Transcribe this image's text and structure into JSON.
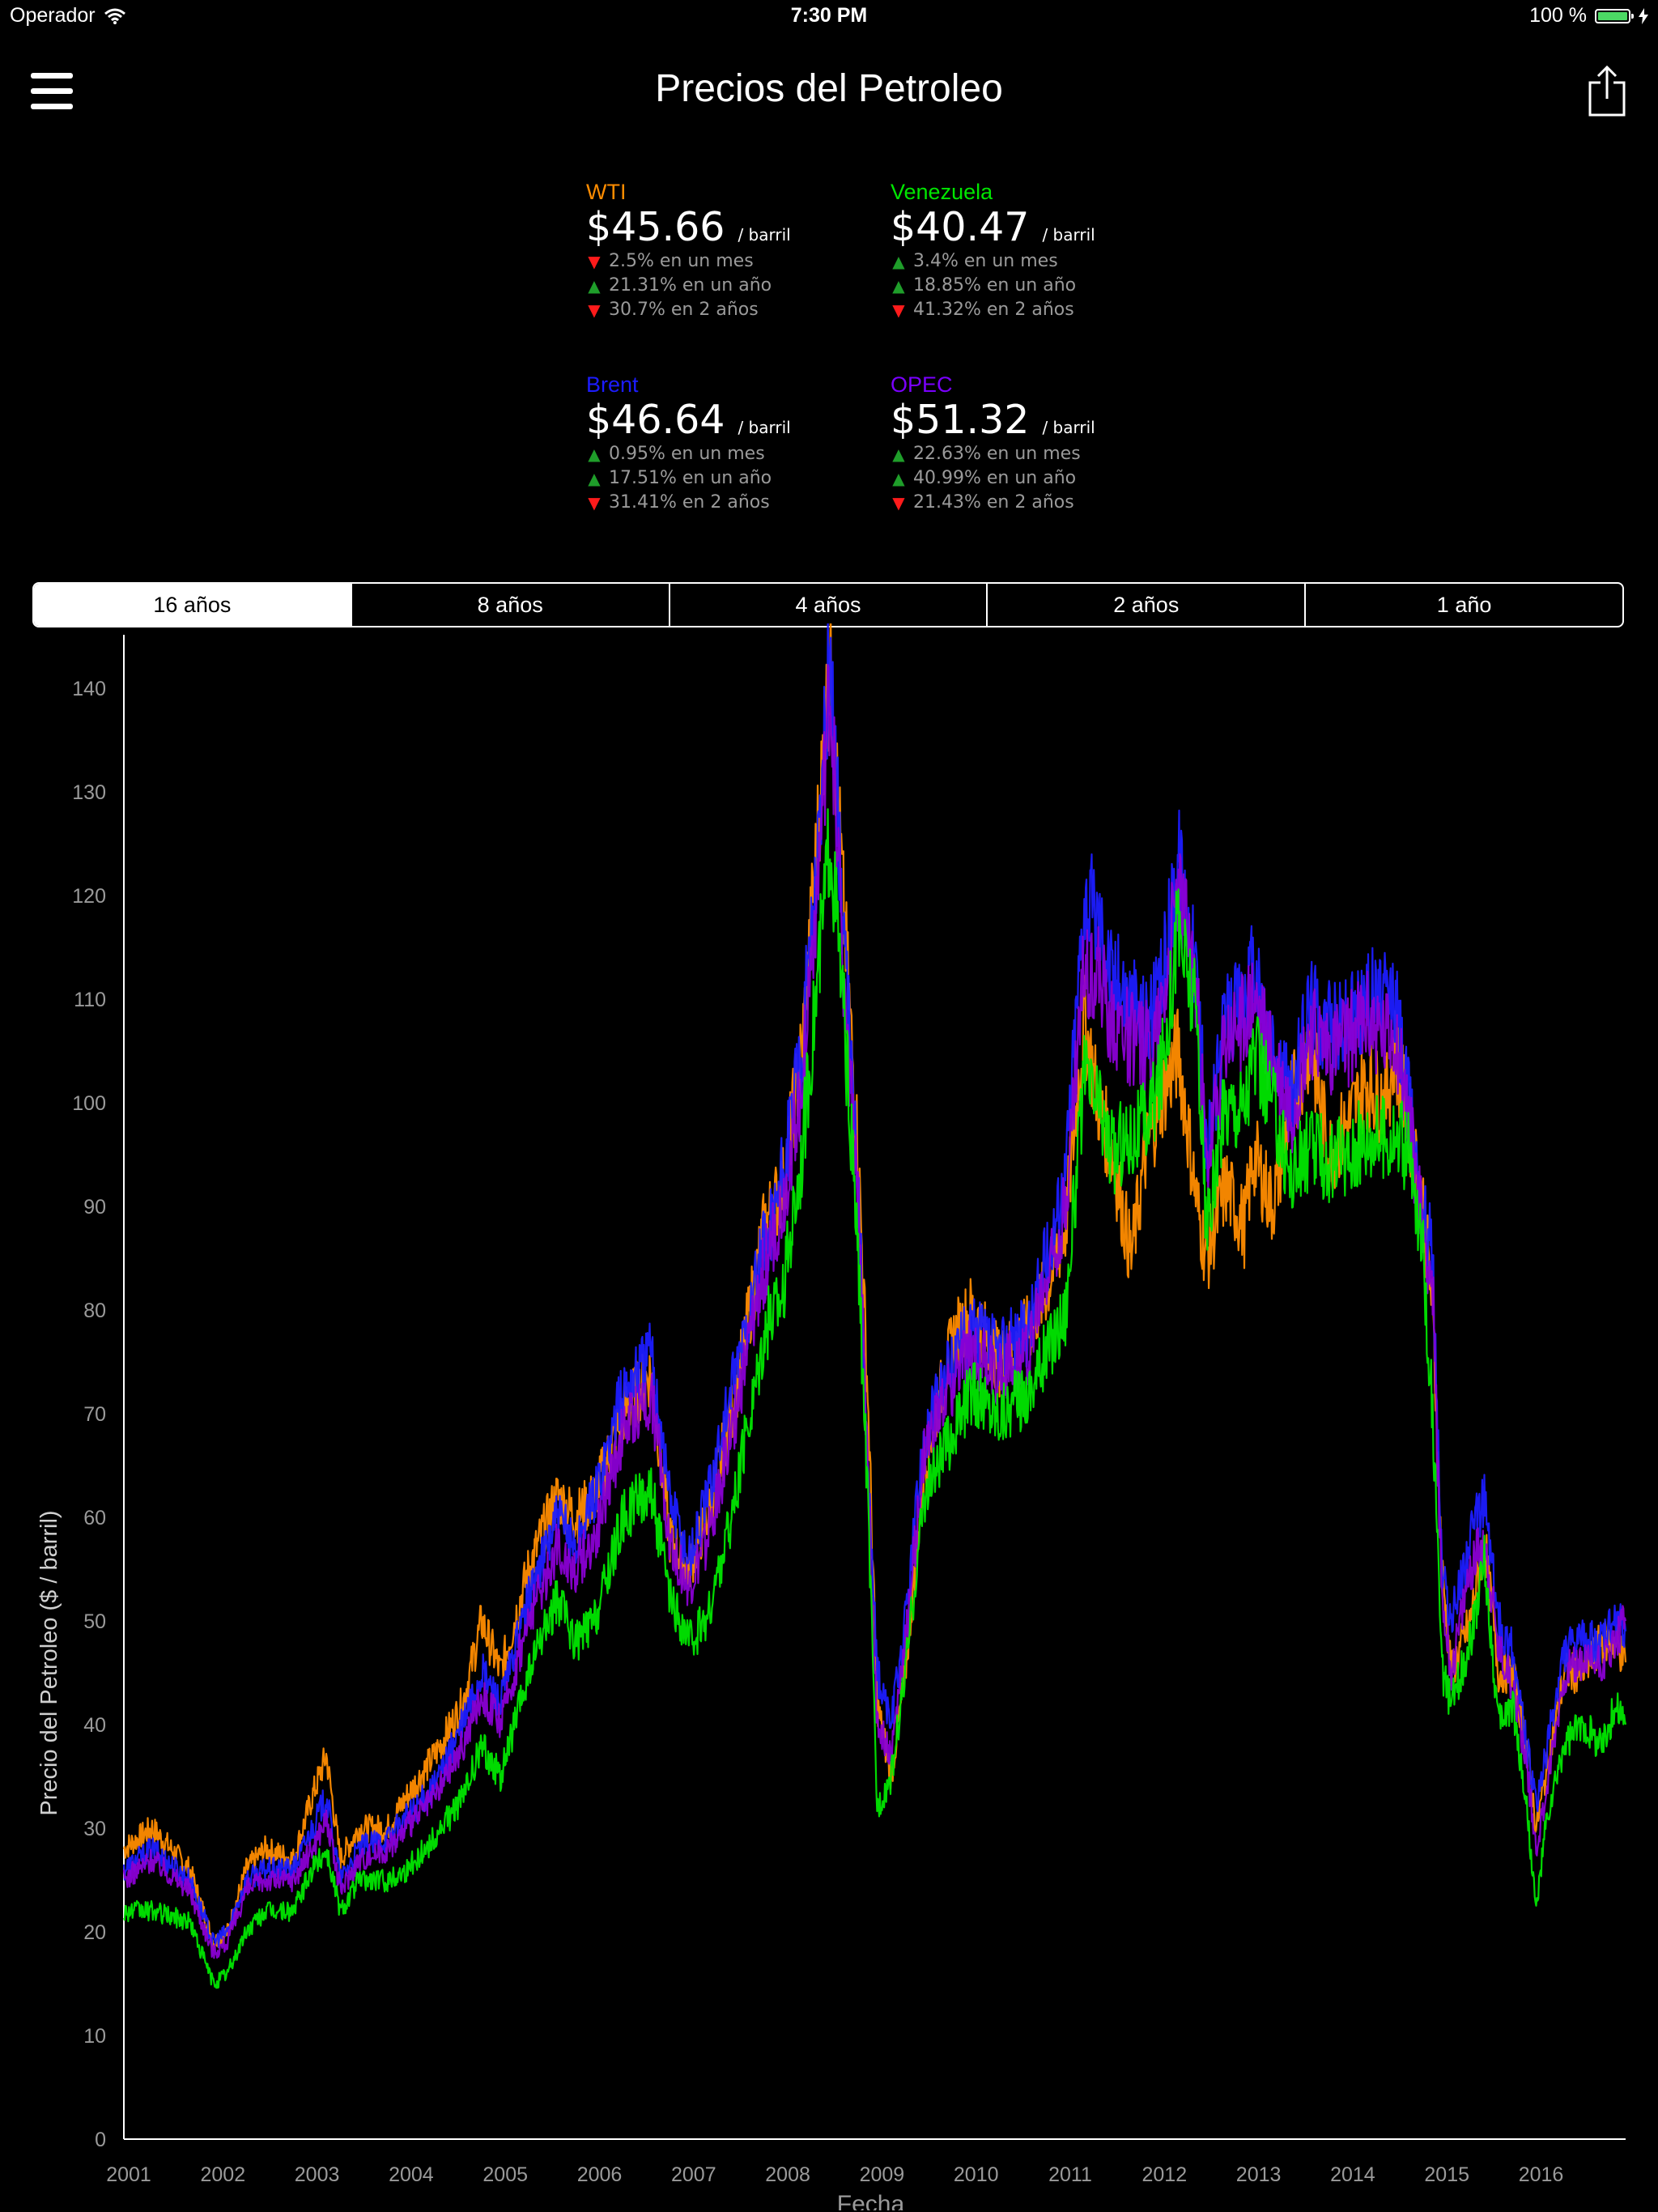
{
  "status": {
    "carrier": "Operador",
    "time": "7:30 PM",
    "battery": "100 %"
  },
  "nav": {
    "title": "Precios del Petroleo",
    "menu_icon": "hamburger-menu-icon",
    "share_icon": "share-icon"
  },
  "prices": [
    {
      "name": "WTI",
      "color": "#ff8c00",
      "value": "$45.66",
      "unit": "/ barril",
      "changes": [
        {
          "dir": "down",
          "text": "2.5% en un mes"
        },
        {
          "dir": "up",
          "text": "21.31% en un año"
        },
        {
          "dir": "down",
          "text": "30.7% en 2 años"
        }
      ]
    },
    {
      "name": "Venezuela",
      "color": "#00e600",
      "value": "$40.47",
      "unit": "/ barril",
      "changes": [
        {
          "dir": "up",
          "text": "3.4% en un mes"
        },
        {
          "dir": "up",
          "text": "18.85% en un año"
        },
        {
          "dir": "down",
          "text": "41.32% en 2 años"
        }
      ]
    },
    {
      "name": "Brent",
      "color": "#1c1cff",
      "value": "$46.64",
      "unit": "/ barril",
      "changes": [
        {
          "dir": "up",
          "text": "0.95% en un mes"
        },
        {
          "dir": "up",
          "text": "17.51% en un año"
        },
        {
          "dir": "down",
          "text": "31.41% en 2 años"
        }
      ]
    },
    {
      "name": "OPEC",
      "color": "#7a00ff",
      "value": "$51.32",
      "unit": "/ barril",
      "changes": [
        {
          "dir": "up",
          "text": "22.63% en un mes"
        },
        {
          "dir": "up",
          "text": "40.99% en un año"
        },
        {
          "dir": "down",
          "text": "21.43% en 2 años"
        }
      ]
    }
  ],
  "ranges": {
    "selected": 0,
    "labels": [
      "16 años",
      "8 años",
      "4 años",
      "2 años",
      "1 año"
    ]
  },
  "chart_data": {
    "type": "line",
    "xlabel": "Fecha",
    "ylabel": "Precio del Petroleo ($ / barril)",
    "ylim": [
      0,
      145
    ],
    "xlim": [
      2001.0,
      2016.95
    ],
    "yticks": [
      0,
      10,
      20,
      30,
      40,
      50,
      60,
      70,
      80,
      90,
      100,
      110,
      120,
      130,
      140
    ],
    "xticks": [
      "2001",
      "2002",
      "2003",
      "2004",
      "2005",
      "2006",
      "2007",
      "2008",
      "2009",
      "2010",
      "2011",
      "2012",
      "2013",
      "2014",
      "2015",
      "2016"
    ],
    "grid": false,
    "legend": "none",
    "series": [
      {
        "name": "WTI",
        "color": "#ff8c00",
        "x": [
          2001.0,
          2001.3,
          2001.7,
          2001.95,
          2002.1,
          2002.3,
          2002.5,
          2002.8,
          2003.0,
          2003.15,
          2003.3,
          2003.5,
          2003.8,
          2004.0,
          2004.3,
          2004.6,
          2004.8,
          2005.0,
          2005.3,
          2005.6,
          2005.8,
          2006.0,
          2006.3,
          2006.6,
          2006.8,
          2007.0,
          2007.2,
          2007.5,
          2007.8,
          2008.0,
          2008.2,
          2008.4,
          2008.5,
          2008.65,
          2008.8,
          2008.9,
          2009.0,
          2009.15,
          2009.3,
          2009.5,
          2009.8,
          2010.0,
          2010.3,
          2010.6,
          2010.8,
          2011.0,
          2011.2,
          2011.35,
          2011.5,
          2011.7,
          2011.85,
          2012.0,
          2012.2,
          2012.4,
          2012.5,
          2012.7,
          2012.9,
          2013.0,
          2013.2,
          2013.4,
          2013.6,
          2013.8,
          2014.0,
          2014.2,
          2014.4,
          2014.5,
          2014.65,
          2014.8,
          2014.9,
          2015.0,
          2015.1,
          2015.3,
          2015.45,
          2015.6,
          2015.75,
          2015.9,
          2016.0,
          2016.1,
          2016.3,
          2016.5,
          2016.7,
          2016.85,
          2016.95
        ],
        "y": [
          28,
          30,
          26,
          19,
          20,
          26,
          28,
          27,
          33,
          37,
          27,
          30,
          30,
          33,
          37,
          42,
          50,
          45,
          55,
          62,
          60,
          62,
          70,
          74,
          58,
          55,
          60,
          72,
          88,
          92,
          105,
          130,
          143,
          118,
          95,
          72,
          42,
          35,
          45,
          65,
          77,
          80,
          75,
          78,
          82,
          88,
          108,
          100,
          95,
          85,
          95,
          100,
          105,
          90,
          85,
          92,
          88,
          95,
          90,
          100,
          106,
          95,
          98,
          102,
          100,
          105,
          98,
          90,
          80,
          55,
          45,
          50,
          58,
          45,
          45,
          38,
          30,
          35,
          45,
          45,
          48,
          48,
          46
        ]
      },
      {
        "name": "Brent",
        "color": "#1c1cff",
        "x": [
          2001.0,
          2001.3,
          2001.7,
          2001.95,
          2002.1,
          2002.3,
          2002.5,
          2002.8,
          2003.0,
          2003.15,
          2003.3,
          2003.5,
          2003.8,
          2004.0,
          2004.3,
          2004.6,
          2004.8,
          2005.0,
          2005.3,
          2005.6,
          2005.8,
          2006.0,
          2006.3,
          2006.6,
          2006.8,
          2007.0,
          2007.2,
          2007.5,
          2007.8,
          2008.0,
          2008.2,
          2008.4,
          2008.5,
          2008.65,
          2008.8,
          2008.9,
          2009.0,
          2009.15,
          2009.3,
          2009.5,
          2009.8,
          2010.0,
          2010.3,
          2010.6,
          2010.8,
          2011.0,
          2011.2,
          2011.35,
          2011.5,
          2011.7,
          2011.85,
          2012.0,
          2012.2,
          2012.4,
          2012.5,
          2012.7,
          2012.9,
          2013.0,
          2013.2,
          2013.4,
          2013.6,
          2013.8,
          2014.0,
          2014.2,
          2014.4,
          2014.5,
          2014.65,
          2014.8,
          2014.9,
          2015.0,
          2015.1,
          2015.3,
          2015.45,
          2015.6,
          2015.75,
          2015.9,
          2016.0,
          2016.1,
          2016.3,
          2016.5,
          2016.7,
          2016.85,
          2016.95
        ],
        "y": [
          26,
          28,
          25,
          19,
          20,
          25,
          26,
          26,
          30,
          33,
          25,
          28,
          29,
          31,
          34,
          40,
          45,
          42,
          52,
          60,
          57,
          62,
          72,
          76,
          62,
          56,
          62,
          74,
          86,
          93,
          105,
          128,
          144,
          115,
          92,
          65,
          45,
          40,
          50,
          68,
          75,
          78,
          76,
          78,
          85,
          93,
          120,
          118,
          112,
          110,
          108,
          110,
          124,
          112,
          95,
          108,
          110,
          113,
          105,
          100,
          110,
          107,
          108,
          110,
          110,
          110,
          100,
          90,
          85,
          55,
          50,
          58,
          62,
          50,
          47,
          38,
          32,
          37,
          47,
          48,
          48,
          50,
          49
        ]
      },
      {
        "name": "OPEC",
        "color": "#8a00d4",
        "x": [
          2001.0,
          2001.3,
          2001.7,
          2001.95,
          2002.1,
          2002.3,
          2002.5,
          2002.8,
          2003.0,
          2003.15,
          2003.3,
          2003.5,
          2003.8,
          2004.0,
          2004.3,
          2004.6,
          2004.8,
          2005.0,
          2005.3,
          2005.6,
          2005.8,
          2006.0,
          2006.3,
          2006.6,
          2006.8,
          2007.0,
          2007.2,
          2007.5,
          2007.8,
          2008.0,
          2008.2,
          2008.4,
          2008.5,
          2008.65,
          2008.8,
          2008.9,
          2009.0,
          2009.15,
          2009.3,
          2009.5,
          2009.8,
          2010.0,
          2010.3,
          2010.6,
          2010.8,
          2011.0,
          2011.2,
          2011.35,
          2011.5,
          2011.7,
          2011.85,
          2012.0,
          2012.2,
          2012.4,
          2012.5,
          2012.7,
          2012.9,
          2013.0,
          2013.2,
          2013.4,
          2013.6,
          2013.8,
          2014.0,
          2014.2,
          2014.4,
          2014.5,
          2014.65,
          2014.8,
          2014.9,
          2015.0,
          2015.1,
          2015.3,
          2015.45,
          2015.6,
          2015.75,
          2015.9,
          2016.0,
          2016.1,
          2016.3,
          2016.5,
          2016.7,
          2016.85,
          2016.95
        ],
        "y": [
          25,
          27,
          24,
          18,
          19,
          24,
          25,
          25,
          28,
          31,
          24,
          27,
          28,
          30,
          33,
          38,
          43,
          40,
          50,
          57,
          55,
          58,
          68,
          72,
          58,
          53,
          58,
          70,
          84,
          90,
          102,
          125,
          140,
          112,
          90,
          64,
          40,
          37,
          48,
          66,
          73,
          76,
          74,
          76,
          83,
          90,
          113,
          112,
          108,
          106,
          105,
          108,
          121,
          110,
          93,
          106,
          108,
          110,
          104,
          99,
          107,
          105,
          106,
          108,
          106,
          107,
          98,
          88,
          82,
          52,
          45,
          55,
          58,
          47,
          44,
          36,
          28,
          33,
          45,
          46,
          46,
          48,
          50
        ]
      },
      {
        "name": "Venezuela",
        "color": "#00e600",
        "x": [
          2001.0,
          2001.3,
          2001.7,
          2001.95,
          2002.1,
          2002.3,
          2002.5,
          2002.8,
          2003.0,
          2003.15,
          2003.3,
          2003.5,
          2003.8,
          2004.0,
          2004.3,
          2004.6,
          2004.8,
          2005.0,
          2005.3,
          2005.6,
          2005.8,
          2006.0,
          2006.3,
          2006.6,
          2006.8,
          2007.0,
          2007.2,
          2007.5,
          2007.8,
          2008.0,
          2008.2,
          2008.4,
          2008.5,
          2008.65,
          2008.8,
          2008.9,
          2009.0,
          2009.15,
          2009.3,
          2009.5,
          2009.8,
          2010.0,
          2010.3,
          2010.6,
          2010.8,
          2011.0,
          2011.2,
          2011.35,
          2011.5,
          2011.7,
          2011.85,
          2012.0,
          2012.2,
          2012.4,
          2012.5,
          2012.7,
          2012.9,
          2013.0,
          2013.2,
          2013.4,
          2013.6,
          2013.8,
          2014.0,
          2014.2,
          2014.4,
          2014.5,
          2014.65,
          2014.8,
          2014.9,
          2015.0,
          2015.1,
          2015.3,
          2015.45,
          2015.6,
          2015.75,
          2015.9,
          2016.0,
          2016.1,
          2016.3,
          2016.5,
          2016.7,
          2016.85,
          2016.95
        ],
        "y": [
          22,
          22,
          21,
          15,
          16,
          20,
          22,
          22,
          26,
          28,
          22,
          25,
          25,
          26,
          29,
          33,
          38,
          35,
          45,
          52,
          48,
          50,
          60,
          63,
          52,
          48,
          50,
          62,
          78,
          82,
          95,
          115,
          126,
          108,
          85,
          62,
          32,
          35,
          45,
          62,
          68,
          72,
          70,
          72,
          76,
          80,
          102,
          100,
          95,
          97,
          98,
          102,
          117,
          108,
          87,
          100,
          100,
          105,
          100,
          93,
          96,
          94,
          95,
          97,
          97,
          97,
          95,
          85,
          70,
          45,
          42,
          48,
          56,
          40,
          42,
          32,
          22,
          30,
          38,
          40,
          38,
          42,
          40
        ]
      }
    ]
  }
}
